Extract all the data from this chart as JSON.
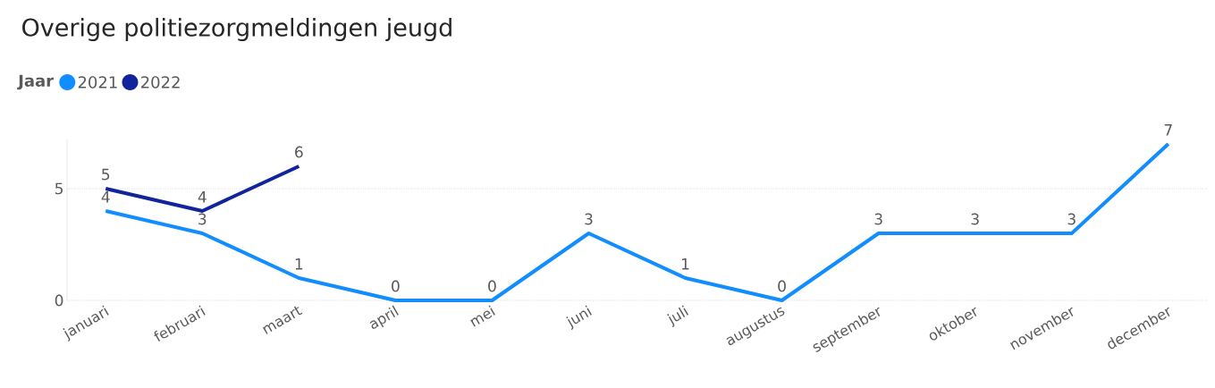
{
  "chart_data": {
    "type": "line",
    "title": "Overige politiezorgmeldingen jeugd",
    "legend_title": "Jaar",
    "categories": [
      "januari",
      "februari",
      "maart",
      "april",
      "mei",
      "juni",
      "juli",
      "augustus",
      "september",
      "oktober",
      "november",
      "december"
    ],
    "series": [
      {
        "name": "2021",
        "color": "#118dff",
        "values": [
          4,
          3,
          1,
          0,
          0,
          3,
          1,
          0,
          3,
          3,
          3,
          7
        ]
      },
      {
        "name": "2022",
        "color": "#12239e",
        "values": [
          5,
          4,
          6,
          null,
          null,
          null,
          null,
          null,
          null,
          null,
          null,
          null
        ]
      }
    ],
    "ylim": [
      0,
      7.2
    ],
    "yticks": [
      0,
      5
    ],
    "grid": "y",
    "legend": "top left",
    "marker": "none",
    "line_style": "solid",
    "data_labels": true
  }
}
